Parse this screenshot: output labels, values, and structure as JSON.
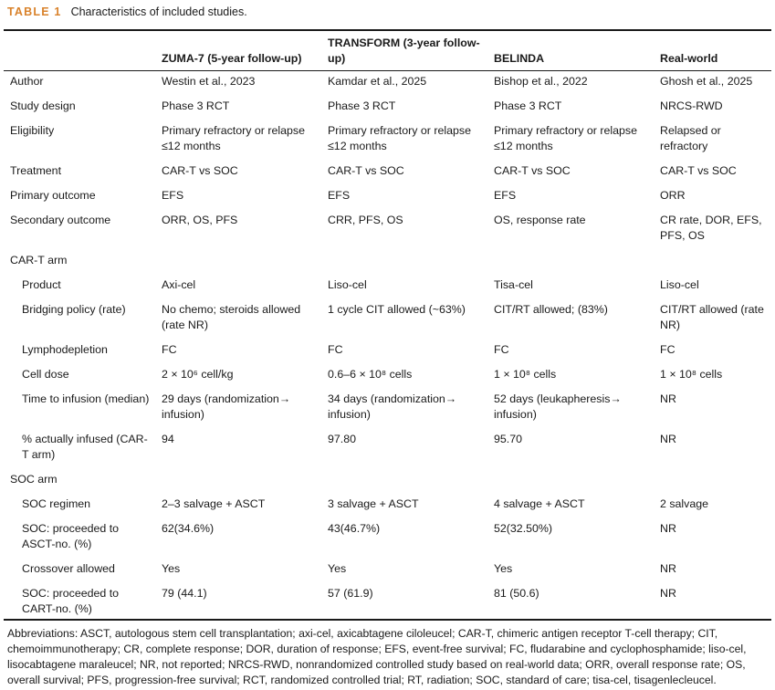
{
  "caption": {
    "label": "TABLE 1",
    "title": "Characteristics of included studies."
  },
  "columns": [
    "",
    "ZUMA-7 (5-year follow-up)",
    "TRANSFORM (3-year follow-up)",
    "BELINDA",
    "Real-world"
  ],
  "rows": [
    {
      "label": "Author",
      "cells": [
        "Westin et al., 2023",
        "Kamdar et al., 2025",
        "Bishop et al., 2022",
        "Ghosh et al., 2025"
      ]
    },
    {
      "label": "Study design",
      "cells": [
        "Phase 3 RCT",
        "Phase 3 RCT",
        "Phase 3 RCT",
        "NRCS-RWD"
      ]
    },
    {
      "label": "Eligibility",
      "cells": [
        "Primary refractory or relapse ≤12 months",
        "Primary refractory or relapse ≤12 months",
        "Primary refractory or relapse ≤12 months",
        "Relapsed or refractory"
      ]
    },
    {
      "label": "Treatment",
      "cells": [
        "CAR-T vs SOC",
        "CAR-T vs SOC",
        "CAR-T vs SOC",
        "CAR-T vs SOC"
      ]
    },
    {
      "label": "Primary outcome",
      "cells": [
        "EFS",
        "EFS",
        "EFS",
        "ORR"
      ]
    },
    {
      "label": "Secondary outcome",
      "cells": [
        "ORR, OS, PFS",
        "CRR, PFS, OS",
        "OS, response rate",
        "CR rate, DOR, EFS, PFS, OS"
      ]
    },
    {
      "label": "CAR-T arm",
      "cells": [
        "",
        "",
        "",
        ""
      ]
    },
    {
      "label": "Product",
      "sub": true,
      "cells": [
        "Axi-cel",
        "Liso-cel",
        "Tisa-cel",
        "Liso-cel"
      ]
    },
    {
      "label": "Bridging policy (rate)",
      "sub": true,
      "cells": [
        "No chemo; steroids allowed (rate NR)",
        "1 cycle CIT allowed (~63%)",
        "CIT/RT allowed; (83%)",
        "CIT/RT allowed (rate NR)"
      ]
    },
    {
      "label": "Lymphodepletion",
      "sub": true,
      "cells": [
        "FC",
        "FC",
        "FC",
        "FC"
      ]
    },
    {
      "label": "Cell dose",
      "sub": true,
      "cells": [
        "2 × 10⁶ cell/kg",
        "0.6–6 × 10⁸ cells",
        "1 × 10⁸ cells",
        "1 × 10⁸ cells"
      ]
    },
    {
      "label": "Time to infusion (median)",
      "sub": true,
      "cells": [
        "29 days (randomization→ infusion)",
        "34 days (randomization→ infusion)",
        "52 days (leukapheresis→ infusion)",
        "NR"
      ]
    },
    {
      "label": "% actually infused (CAR-T arm)",
      "sub": true,
      "cells": [
        "94",
        "97.80",
        "95.70",
        "NR"
      ]
    },
    {
      "label": "SOC arm",
      "cells": [
        "",
        "",
        "",
        ""
      ]
    },
    {
      "label": "SOC regimen",
      "sub": true,
      "cells": [
        "2–3 salvage + ASCT",
        "3 salvage + ASCT",
        "4 salvage + ASCT",
        "2 salvage"
      ]
    },
    {
      "label": "SOC: proceeded to ASCT-no. (%)",
      "sub": true,
      "cells": [
        "62(34.6%)",
        "43(46.7%)",
        "52(32.50%)",
        "NR"
      ]
    },
    {
      "label": "Crossover allowed",
      "sub": true,
      "cells": [
        "Yes",
        "Yes",
        "Yes",
        "NR"
      ]
    },
    {
      "label": "SOC: proceeded to CART-no. (%)",
      "sub": true,
      "cells": [
        "79 (44.1)",
        "57 (61.9)",
        "81 (50.6)",
        "NR"
      ]
    }
  ],
  "abbreviations": "Abbreviations: ASCT, autologous stem cell transplantation; axi-cel, axicabtagene ciloleucel; CAR-T, chimeric antigen receptor T-cell therapy; CIT, chemoimmunotherapy; CR, complete response; DOR, duration of response; EFS, event-free survival; FC, fludarabine and cyclophosphamide; liso-cel, lisocabtagene maraleucel; NR, not reported; NRCS-RWD, nonrandomized controlled study based on real-world data; ORR, overall response rate; OS, overall survival; PFS, progression-free survival; RCT, randomized controlled trial; RT, radiation; SOC, standard of care; tisa-cel, tisagenlecleucel."
}
